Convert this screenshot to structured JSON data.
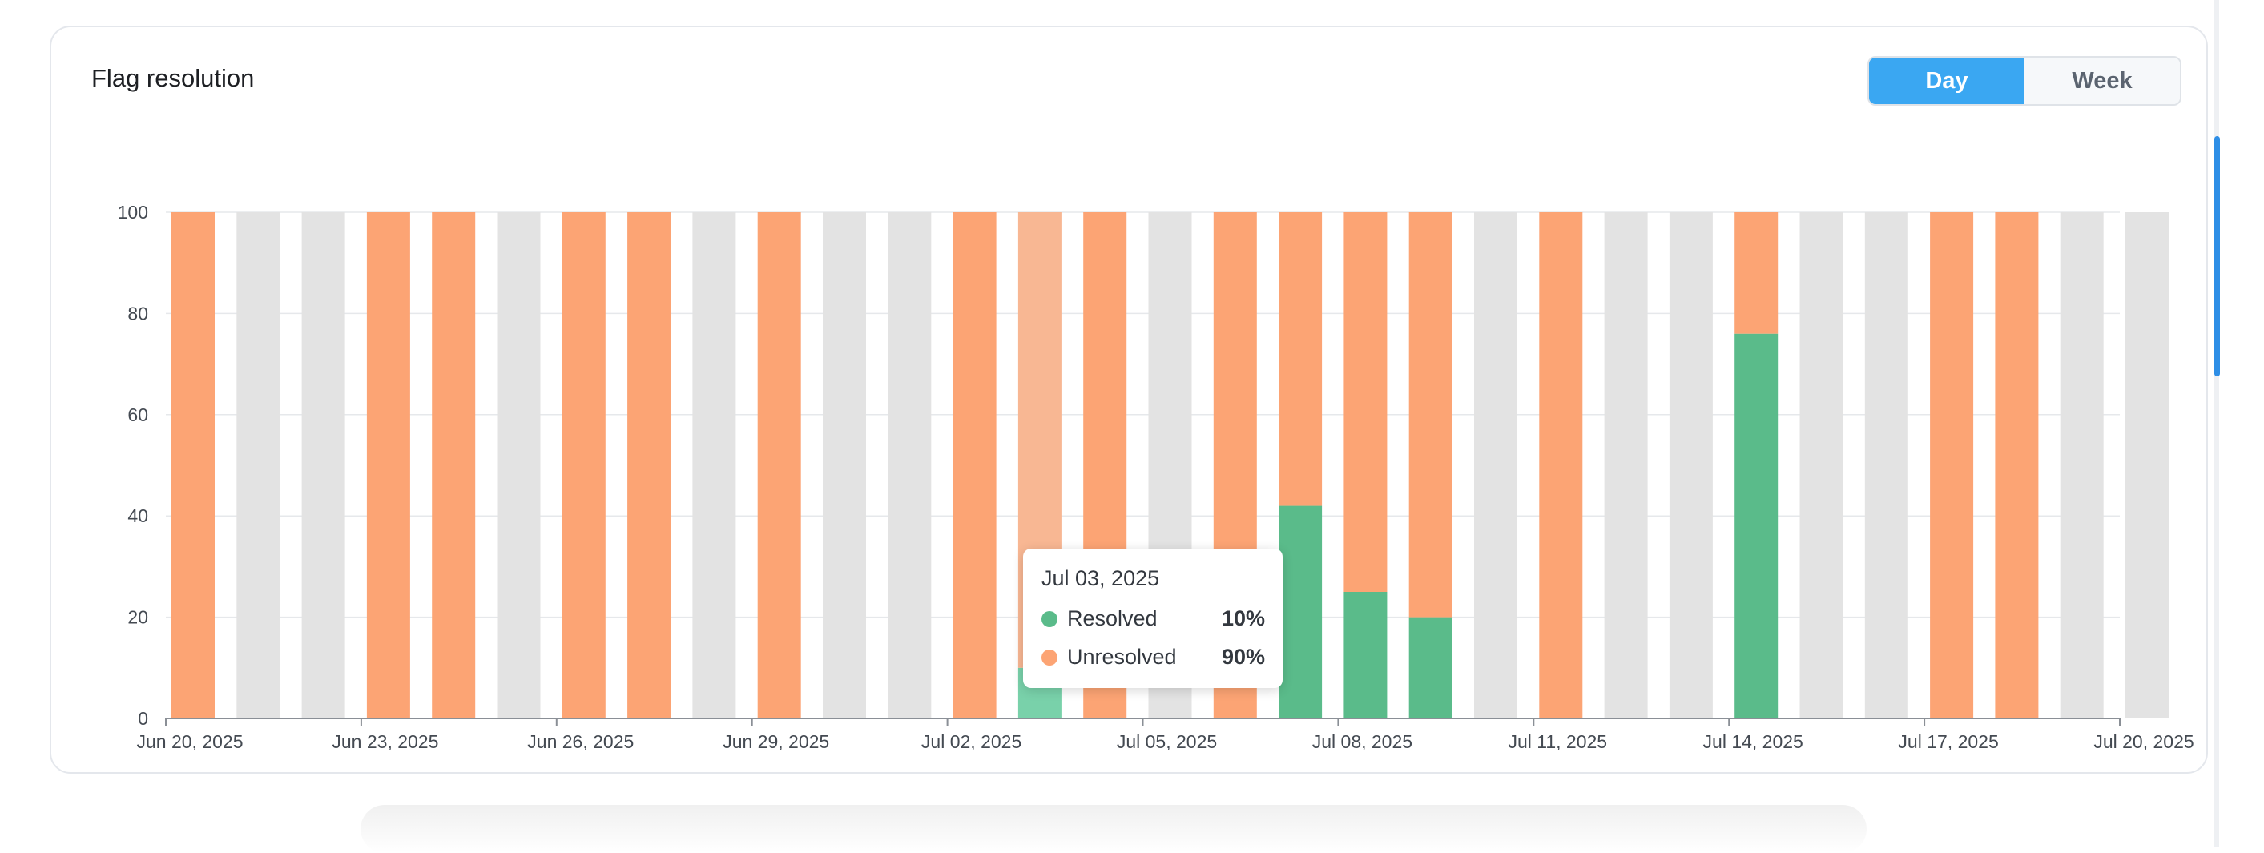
{
  "card": {
    "title": "Flag resolution"
  },
  "toggle": {
    "day_label": "Day",
    "week_label": "Week",
    "selected": "Day"
  },
  "colors": {
    "resolved": "#5abb8a",
    "unresolved": "#fca474",
    "resolved_hover": "#79d1aa",
    "unresolved_hover": "#f8b793",
    "no_data": "#e3e3e3",
    "accent": "#3aa7f2"
  },
  "chart_data": {
    "type": "bar",
    "stacked": true,
    "title": "Flag resolution",
    "xlabel": "",
    "ylabel": "",
    "ylim": [
      0,
      100
    ],
    "y_ticks": [
      "0",
      "20",
      "40",
      "60",
      "80",
      "100"
    ],
    "x_tick_labels": [
      "Jun 20, 2025",
      "Jun 23, 2025",
      "Jun 26, 2025",
      "Jun 29, 2025",
      "Jul 02, 2025",
      "Jul 05, 2025",
      "Jul 08, 2025",
      "Jul 11, 2025",
      "Jul 14, 2025",
      "Jul 17, 2025",
      "Jul 20, 2025"
    ],
    "categories": [
      "Jun 20, 2025",
      "Jun 21, 2025",
      "Jun 22, 2025",
      "Jun 23, 2025",
      "Jun 24, 2025",
      "Jun 25, 2025",
      "Jun 26, 2025",
      "Jun 27, 2025",
      "Jun 28, 2025",
      "Jun 29, 2025",
      "Jun 30, 2025",
      "Jul 01, 2025",
      "Jul 02, 2025",
      "Jul 03, 2025",
      "Jul 04, 2025",
      "Jul 05, 2025",
      "Jul 06, 2025",
      "Jul 07, 2025",
      "Jul 08, 2025",
      "Jul 09, 2025",
      "Jul 10, 2025",
      "Jul 11, 2025",
      "Jul 12, 2025",
      "Jul 13, 2025",
      "Jul 14, 2025",
      "Jul 15, 2025",
      "Jul 16, 2025",
      "Jul 17, 2025",
      "Jul 18, 2025",
      "Jul 19, 2025",
      "Jul 20, 2025"
    ],
    "series": [
      {
        "name": "Resolved",
        "values": [
          0,
          null,
          null,
          0,
          0,
          null,
          0,
          0,
          null,
          0,
          null,
          null,
          0,
          10,
          0,
          null,
          0,
          42,
          25,
          20,
          null,
          0,
          null,
          null,
          76,
          null,
          null,
          0,
          0,
          null,
          null
        ]
      },
      {
        "name": "Unresolved",
        "values": [
          100,
          null,
          null,
          100,
          100,
          null,
          100,
          100,
          null,
          100,
          null,
          null,
          100,
          90,
          100,
          null,
          100,
          58,
          75,
          80,
          null,
          100,
          null,
          null,
          24,
          null,
          null,
          100,
          100,
          null,
          null
        ]
      }
    ],
    "highlighted_category": "Jul 03, 2025",
    "grid": true,
    "legend": "none"
  },
  "tooltip": {
    "date": "Jul 03, 2025",
    "resolved_label": "Resolved",
    "resolved_value": "10%",
    "unresolved_label": "Unresolved",
    "unresolved_value": "90%"
  }
}
